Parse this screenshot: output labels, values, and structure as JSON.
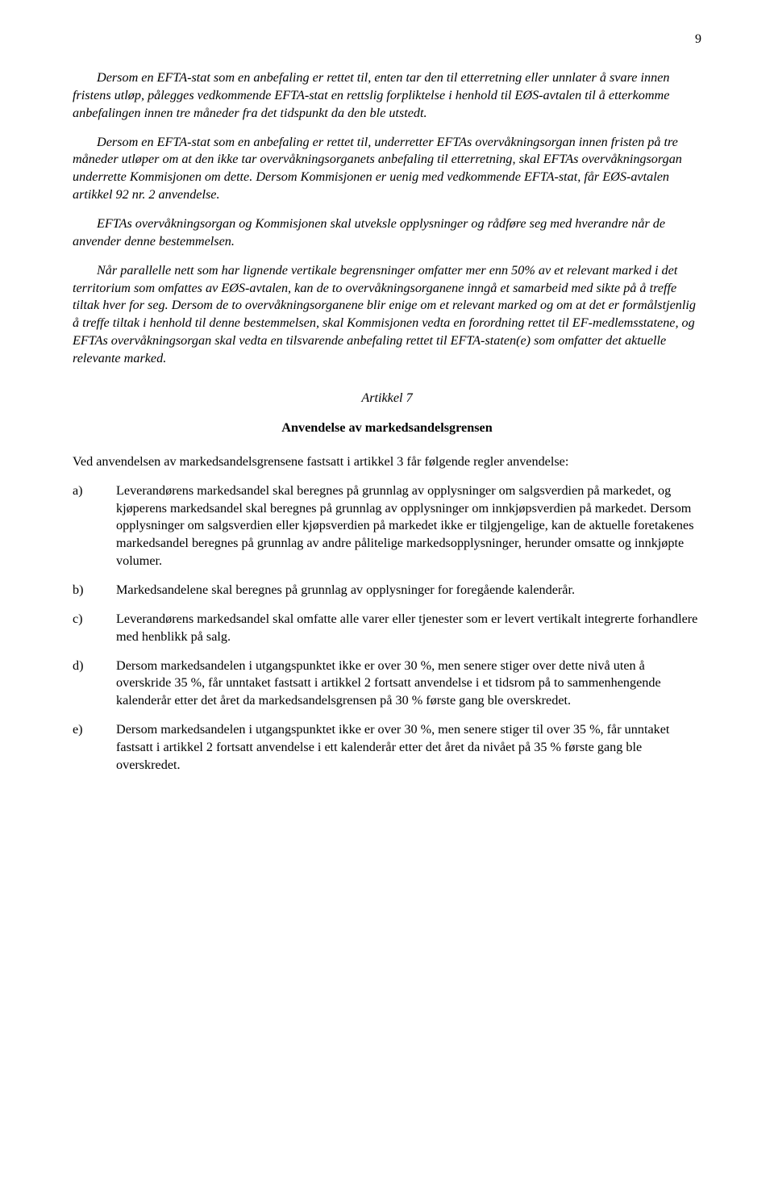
{
  "page_number": "9",
  "paragraphs": {
    "p1": "Dersom en EFTA-stat som en anbefaling er rettet til, enten tar den til etterretning eller unnlater å svare innen fristens utløp, pålegges vedkommende EFTA-stat en rettslig forpliktelse i henhold til EØS-avtalen til å etterkomme anbefalingen innen tre måneder fra det tidspunkt da den ble utstedt.",
    "p2": "Dersom en EFTA-stat som en anbefaling er rettet til, underretter EFTAs overvåkningsorgan innen fristen på tre måneder utløper om at den ikke tar overvåkningsorganets anbefaling til etterretning, skal EFTAs overvåkningsorgan underrette Kommisjonen om dette. Dersom Kommisjonen er uenig med vedkommende EFTA-stat, får EØS-avtalen artikkel 92 nr. 2 anvendelse.",
    "p3": "EFTAs overvåkningsorgan og Kommisjonen skal utveksle opplysninger og rådføre seg med hverandre når de anvender denne bestemmelsen.",
    "p4": "Når parallelle nett som har lignende vertikale begrensninger omfatter mer enn 50% av et relevant marked i det territorium som omfattes av EØS-avtalen, kan de to overvåkningsorganene inngå et samarbeid med sikte på å treffe tiltak hver for seg. Dersom de to overvåkningsorganene blir enige om et relevant marked og om at det er formålstjenlig å treffe tiltak i henhold til denne bestemmelsen, skal Kommisjonen vedta en forordning rettet til EF-medlemsstatene, og EFTAs overvåkningsorgan skal vedta en tilsvarende anbefaling rettet til EFTA-staten(e) som omfatter det aktuelle relevante marked."
  },
  "article": {
    "title": "Artikkel 7",
    "subtitle": "Anvendelse av markedsandelsgrensen"
  },
  "intro": "Ved anvendelsen av markedsandelsgrensene fastsatt i artikkel 3 får følgende regler anvendelse:",
  "items": {
    "a": {
      "label": "a)",
      "text": "Leverandørens markedsandel skal beregnes på grunnlag av opplysninger om salgsverdien på markedet, og kjøperens markedsandel skal beregnes på grunnlag av opplysninger om innkjøpsverdien på markedet. Dersom opplysninger om salgsverdien eller kjøpsverdien på markedet ikke er tilgjengelige, kan de aktuelle foretakenes markedsandel beregnes på grunnlag av andre pålitelige markedsopplysninger, herunder omsatte og innkjøpte volumer."
    },
    "b": {
      "label": "b)",
      "text": "Markedsandelene skal beregnes på grunnlag av opplysninger for foregående kalenderår."
    },
    "c": {
      "label": "c)",
      "text": "Leverandørens markedsandel skal omfatte alle varer eller tjenester som er levert vertikalt integrerte forhandlere med henblikk på salg."
    },
    "d": {
      "label": "d)",
      "text": "Dersom markedsandelen i utgangspunktet ikke er over 30 %, men senere stiger over dette nivå uten å overskride 35 %, får unntaket fastsatt i artikkel 2 fortsatt anvendelse i et tidsrom på to sammenhengende kalenderår etter det året da markedsandelsgrensen på 30 % første gang ble overskredet."
    },
    "e": {
      "label": "e)",
      "text": "Dersom markedsandelen i utgangspunktet ikke er over 30 %, men senere stiger til over 35 %, får unntaket fastsatt i artikkel 2 fortsatt anvendelse i ett kalenderår etter det året da nivået på 35 % første gang ble overskredet."
    }
  }
}
